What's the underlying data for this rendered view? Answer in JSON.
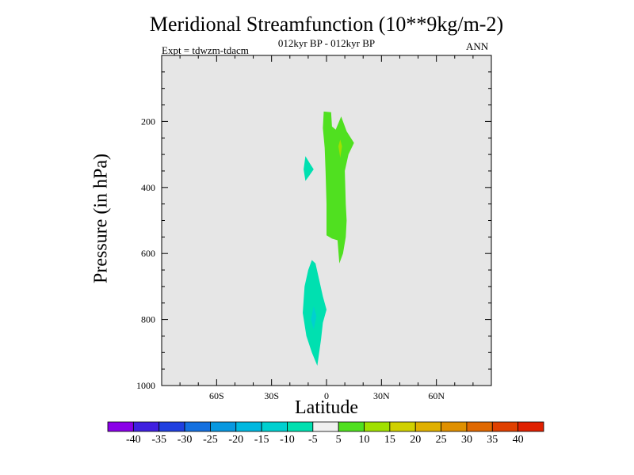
{
  "chart_data": {
    "type": "heatmap",
    "title": "Meridional Streamfunction (10**9kg/m-2)",
    "subtitle": "012kyr BP - 012kyr BP",
    "experiment": "Expt = tdwzm-tdacm",
    "season": "ANN",
    "xlabel": "Latitude",
    "ylabel": "Pressure (in hPa)",
    "xlim": [
      -90,
      90
    ],
    "ylim": [
      1000,
      0
    ],
    "x_ticks": [
      {
        "value": -60,
        "label": "60S"
      },
      {
        "value": -30,
        "label": "30S"
      },
      {
        "value": 0,
        "label": "0"
      },
      {
        "value": 30,
        "label": "30N"
      },
      {
        "value": 60,
        "label": "60N"
      }
    ],
    "y_ticks": [
      {
        "value": 200,
        "label": "200"
      },
      {
        "value": 400,
        "label": "400"
      },
      {
        "value": 600,
        "label": "600"
      },
      {
        "value": 800,
        "label": "800"
      },
      {
        "value": 1000,
        "label": "1000"
      }
    ],
    "colorbar": {
      "levels": [
        -40,
        -35,
        -30,
        -25,
        -20,
        -15,
        -10,
        -5,
        5,
        10,
        15,
        20,
        25,
        30,
        35,
        40
      ],
      "labels": [
        "-40",
        "-35",
        "-30",
        "-25",
        "-20",
        "-15",
        "-10",
        "-5",
        "5",
        "10",
        "15",
        "20",
        "25",
        "30",
        "35",
        "40"
      ],
      "colors": [
        "#8a00e8",
        "#4020e0",
        "#2040e0",
        "#1470e0",
        "#0898e0",
        "#00b8e0",
        "#00d0d0",
        "#00e0b0",
        "#f0f0f0",
        "#50e020",
        "#a0e000",
        "#d0d000",
        "#e0b000",
        "#e09000",
        "#e06800",
        "#e04000",
        "#e02000"
      ]
    },
    "regions": [
      {
        "name": "positive-cell-upper",
        "range": "5 to 10",
        "color": "#50e020",
        "polygon": [
          [
            -1.5,
            170
          ],
          [
            2.5,
            172
          ],
          [
            3,
            215
          ],
          [
            5,
            225
          ],
          [
            8,
            185
          ],
          [
            11,
            230
          ],
          [
            15,
            265
          ],
          [
            12,
            300
          ],
          [
            10,
            350
          ],
          [
            10.5,
            450
          ],
          [
            11,
            500
          ],
          [
            10.5,
            550
          ],
          [
            9,
            600
          ],
          [
            7,
            630
          ],
          [
            6,
            560
          ],
          [
            3,
            555
          ],
          [
            0,
            545
          ],
          [
            0,
            450
          ],
          [
            -0.5,
            350
          ],
          [
            -1,
            280
          ],
          [
            -2,
            220
          ]
        ]
      },
      {
        "name": "positive-core-upper",
        "range": "10 to 15",
        "color": "#a0e000",
        "polygon": [
          [
            7.5,
            255
          ],
          [
            8.5,
            275
          ],
          [
            7.5,
            310
          ],
          [
            6.5,
            275
          ]
        ]
      },
      {
        "name": "negative-cell-upper",
        "range": "-10 to -5",
        "color": "#00e0b0",
        "polygon": [
          [
            -11.5,
            305
          ],
          [
            -9,
            328
          ],
          [
            -7,
            345
          ],
          [
            -9.5,
            365
          ],
          [
            -11.5,
            380
          ],
          [
            -12.5,
            345
          ]
        ]
      },
      {
        "name": "negative-cell-lower",
        "range": "-10 to -5",
        "color": "#00e0b0",
        "polygon": [
          [
            -8,
            620
          ],
          [
            -6,
            630
          ],
          [
            -4,
            680
          ],
          [
            -2,
            730
          ],
          [
            0,
            770
          ],
          [
            -2,
            810
          ],
          [
            -3,
            860
          ],
          [
            -5,
            940
          ],
          [
            -8,
            900
          ],
          [
            -11,
            850
          ],
          [
            -13,
            780
          ],
          [
            -12,
            700
          ],
          [
            -10,
            650
          ]
        ]
      },
      {
        "name": "negative-core-lower",
        "range": "-15 to -10",
        "color": "#00d0d0",
        "polygon": [
          [
            -7,
            760
          ],
          [
            -5.5,
            790
          ],
          [
            -7,
            830
          ],
          [
            -8.5,
            800
          ]
        ]
      }
    ]
  }
}
